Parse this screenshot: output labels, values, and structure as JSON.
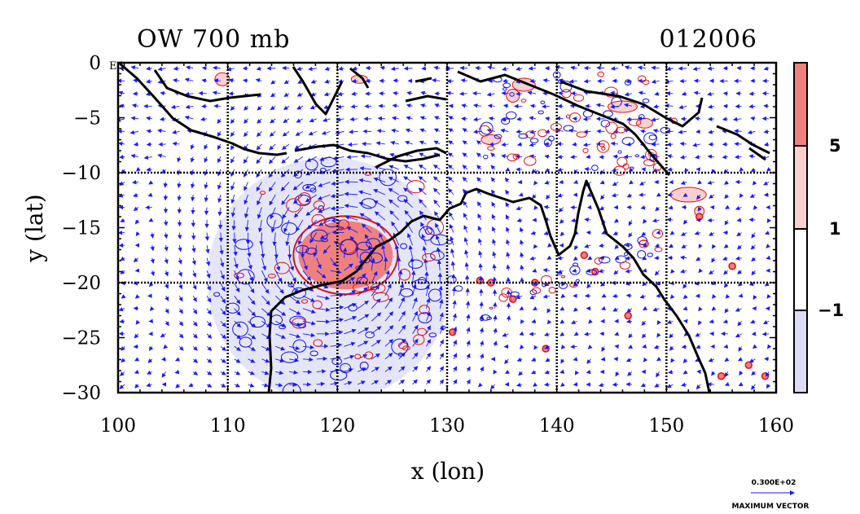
{
  "header": {
    "title_left": "OW 700 mb",
    "title_right": "012006"
  },
  "map": {
    "xlabel": "x (lon)",
    "ylabel": "y (lat)",
    "x_ticks": [
      "100",
      "110",
      "120",
      "130",
      "140",
      "150",
      "160"
    ],
    "y_ticks": [
      "0",
      "−5",
      "−10",
      "−15",
      "−20",
      "−25",
      "−30"
    ],
    "x_range": [
      100,
      160
    ],
    "y_range": [
      -30,
      0
    ],
    "equator_label": "EQ",
    "grid_lon": [
      110,
      120,
      130,
      140,
      150
    ],
    "grid_lat": [
      -10,
      -20
    ],
    "field": "OW",
    "level": "700 mb"
  },
  "colorbar": {
    "labels": [
      "5",
      "1",
      "−1"
    ],
    "bands": [
      {
        "color": "#f08080"
      },
      {
        "color": "#f9d0d0"
      },
      {
        "color": "#ffffff"
      },
      {
        "color": "#dcdcf5"
      }
    ]
  },
  "vector_key": {
    "value": "0.300E+02",
    "label": "MAXIMUM VECTOR"
  },
  "colors": {
    "positive": "#f08080",
    "positive_light": "#f9d0d0",
    "negative_light": "#dcdcf5",
    "contour_red": "#e01010",
    "contour_blue": "#1010e0",
    "coast": "#000000"
  },
  "features": {
    "cyclone_center_lon": 120.0,
    "cyclone_center_lat": -17.5
  }
}
